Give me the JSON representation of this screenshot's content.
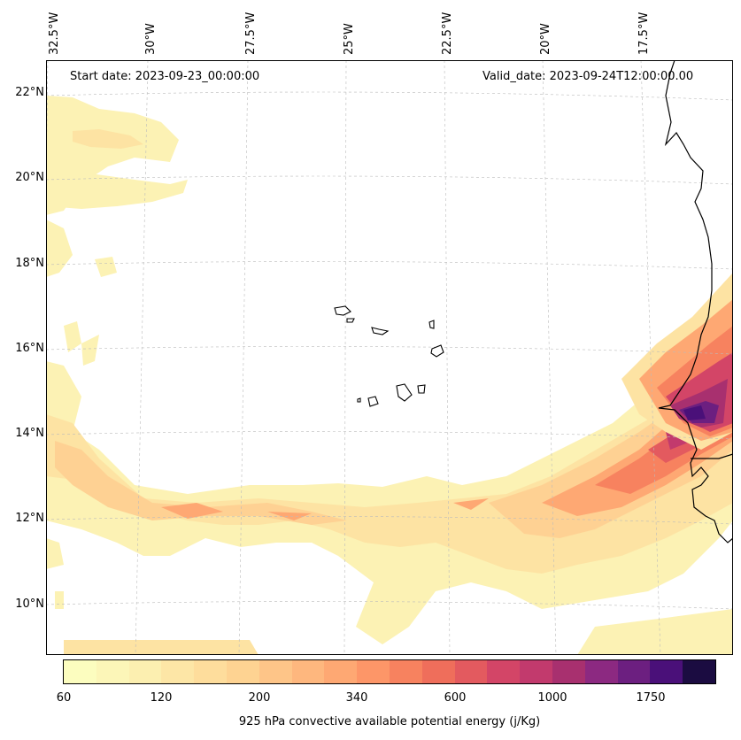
{
  "map": {
    "start_date": "Start date: 2023-09-23_00:00:00",
    "valid_date": "Valid_date: 2023-09-24T12:00:00.00",
    "lon_labels": [
      "32.5°W",
      "30°W",
      "27.5°W",
      "25°W",
      "22.5°W",
      "20°W",
      "17.5°W"
    ],
    "lat_labels": [
      "22°N",
      "20°N",
      "18°N",
      "16°N",
      "14°N",
      "12°N",
      "10°N"
    ],
    "variable": "925 hPa convective available potential energy"
  },
  "colorbar": {
    "label": "925 hPa convective available potential energy (j/Kg)",
    "tick_labels": [
      "60",
      "120",
      "200",
      "340",
      "600",
      "1000",
      "1750"
    ],
    "colors": [
      "#fcfdbf",
      "#fcf6b8",
      "#fcefb0",
      "#fde6a6",
      "#fedd9c",
      "#fed392",
      "#fec588",
      "#feb77e",
      "#fea873",
      "#fd9668",
      "#f7825f",
      "#ef6e5b",
      "#e35a5f",
      "#d34567",
      "#c23a6d",
      "#a8306f",
      "#8c2981",
      "#6c1f80",
      "#4a1079",
      "#1b0c41"
    ]
  },
  "chart_data": {
    "type": "heatmap",
    "title": "",
    "field": "925 hPa convective available potential energy",
    "units": "j/Kg",
    "levels": [
      60,
      120,
      200,
      340,
      600,
      1000,
      1750
    ],
    "lon_range_deg": [
      -33.0,
      -15.5
    ],
    "lat_range_deg": [
      8.8,
      22.8
    ],
    "features": [
      "Cape Verde islands",
      "West African coastline (Senegal, Mauritania, Guinea-Bissau)"
    ],
    "max_region": "near 14.5°N 17°W, > 1750 j/Kg"
  }
}
